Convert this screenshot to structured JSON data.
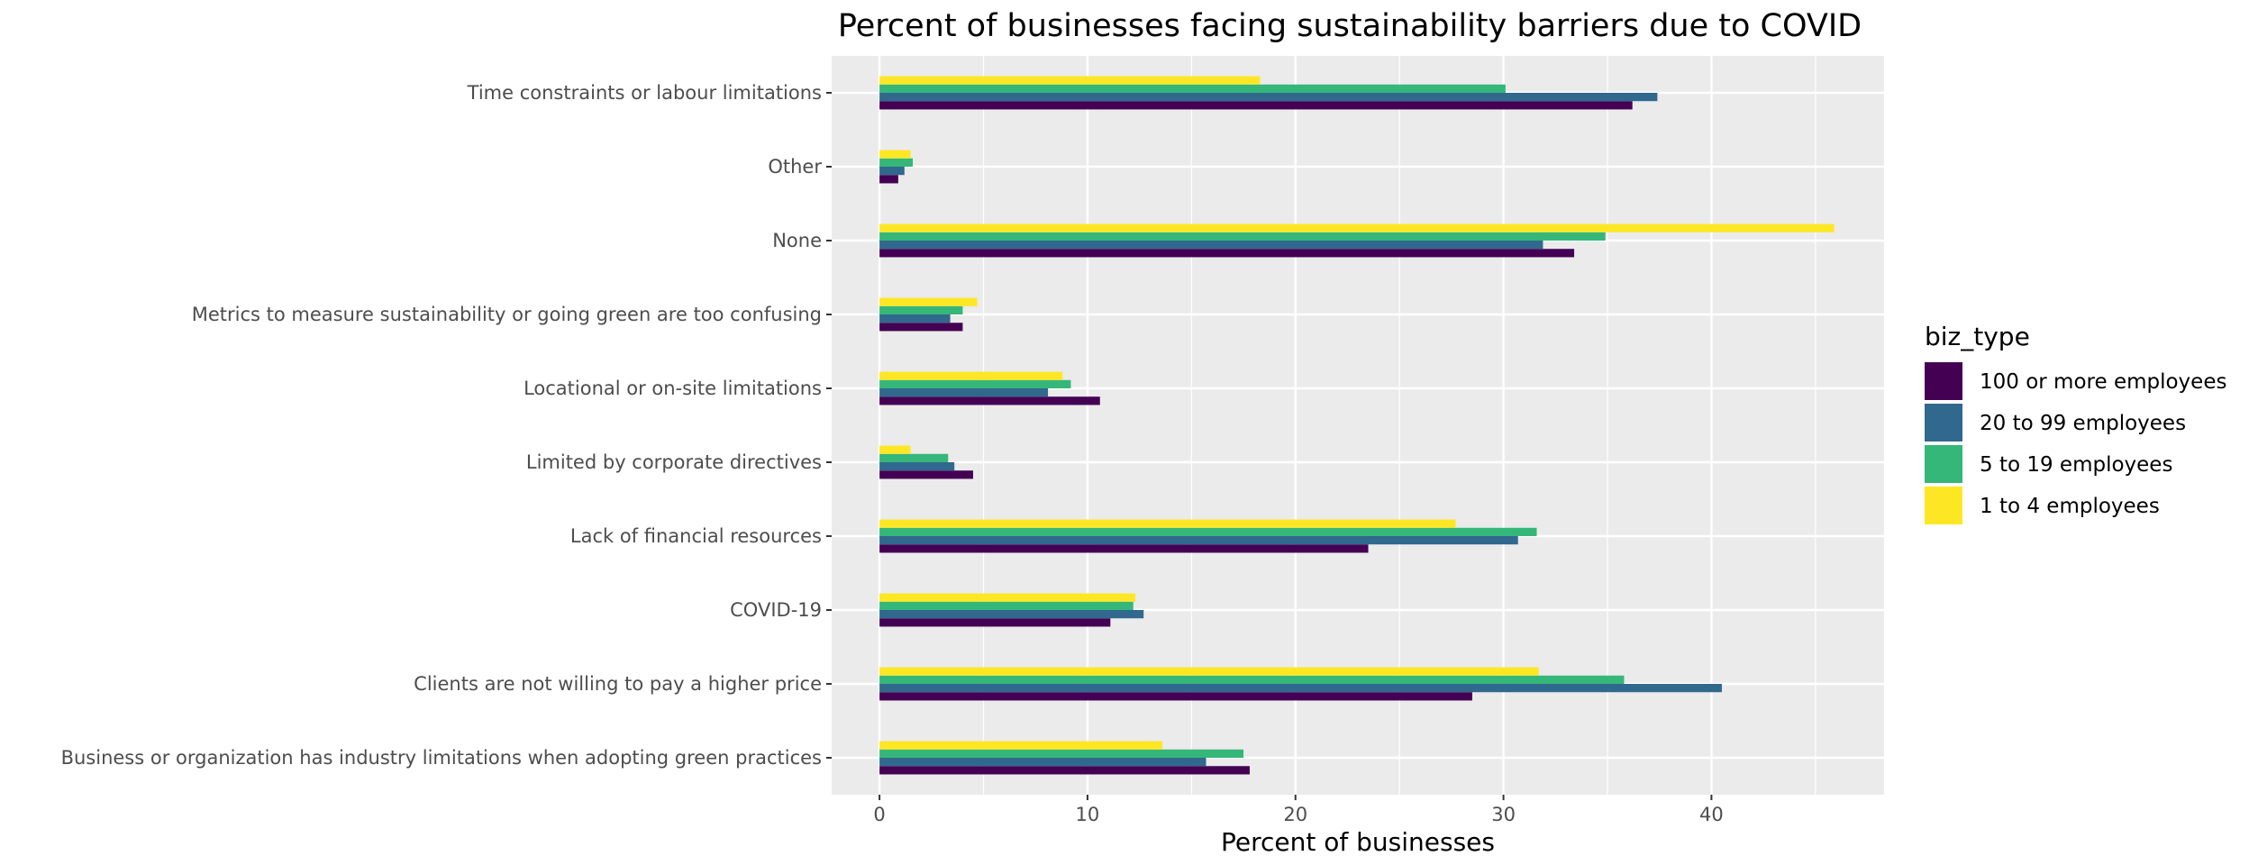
{
  "chart_data": {
    "type": "bar",
    "orientation": "horizontal",
    "title": "Percent of businesses facing sustainability barriers due to COVID",
    "xlabel": "Percent of businesses",
    "ylabel": "",
    "xlim": [
      -2.3,
      48.3
    ],
    "x_ticks": [
      0,
      10,
      20,
      30,
      40
    ],
    "grid": true,
    "legend_title": "biz_type",
    "legend_position": "right",
    "categories": [
      "Business or organization has industry limitations when adopting green practices",
      "Clients are not willing to pay a higher price",
      "COVID-19",
      "Lack of financial resources",
      "Limited by corporate directives",
      "Locational or on-site limitations",
      "Metrics to measure sustainability or going green are too confusing",
      "None",
      "Other",
      "Time constraints or labour limitations"
    ],
    "series": [
      {
        "name": "100 or more employees",
        "color": "#440154",
        "values": [
          17.8,
          28.5,
          11.1,
          23.5,
          4.5,
          10.6,
          4.0,
          33.4,
          0.9,
          36.2
        ]
      },
      {
        "name": "20 to 99 employees",
        "color": "#31688E",
        "values": [
          15.7,
          40.5,
          12.7,
          30.7,
          3.6,
          8.1,
          3.4,
          31.9,
          1.2,
          37.4
        ]
      },
      {
        "name": "5 to 19 employees",
        "color": "#35B779",
        "values": [
          17.5,
          35.8,
          12.2,
          31.6,
          3.3,
          9.2,
          4.0,
          34.9,
          1.6,
          30.1
        ]
      },
      {
        "name": "1 to 4 employees",
        "color": "#FDE725",
        "values": [
          13.6,
          31.7,
          12.3,
          27.7,
          1.5,
          8.8,
          4.7,
          45.9,
          1.5,
          18.3
        ]
      }
    ]
  }
}
